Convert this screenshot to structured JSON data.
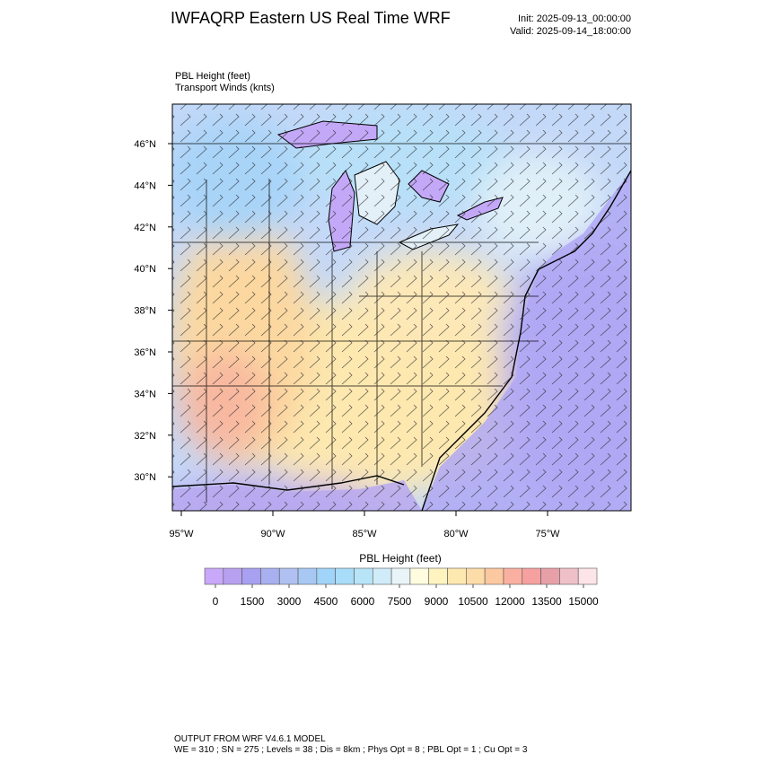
{
  "header": {
    "title": "IWFAQRP Eastern US Real Time WRF",
    "init": "Init: 2025-09-13_00:00:00",
    "valid": "Valid: 2025-09-14_18:00:00"
  },
  "fields": [
    "PBL Height   (feet)",
    "Transport Winds   (knts)"
  ],
  "map": {
    "lat_labels": [
      "46°N",
      "44°N",
      "42°N",
      "40°N",
      "38°N",
      "36°N",
      "34°N",
      "32°N",
      "30°N"
    ],
    "lon_labels": [
      "95°W",
      "90°W",
      "85°W",
      "80°W",
      "75°W"
    ]
  },
  "colorbar": {
    "title": "PBL Height  (feet)",
    "ticks": [
      0,
      1500,
      3000,
      4500,
      6000,
      7500,
      9000,
      10500,
      12000,
      13500,
      15000
    ],
    "colors": [
      "#c8a8f8",
      "#b8a0f0",
      "#a8a0f0",
      "#a8b0f0",
      "#b0c0f0",
      "#a8c8f4",
      "#a0d4f8",
      "#a8dcf8",
      "#b8e4f8",
      "#d0ecf8",
      "#e8f4f8",
      "#fffce0",
      "#fff4c0",
      "#fde8b0",
      "#fcdca8",
      "#fcc8a0",
      "#fab0a0",
      "#f6a0a0",
      "#e8a0a8",
      "#f0c0c8",
      "#fce4e8"
    ]
  },
  "footer": [
    "OUTPUT FROM WRF V4.6.1 MODEL",
    "WE = 310 ; SN = 275 ; Levels = 38 ; Dis = 8km ; Phys Opt = 8 ; PBL Opt = 1 ; Cu Opt = 3"
  ]
}
